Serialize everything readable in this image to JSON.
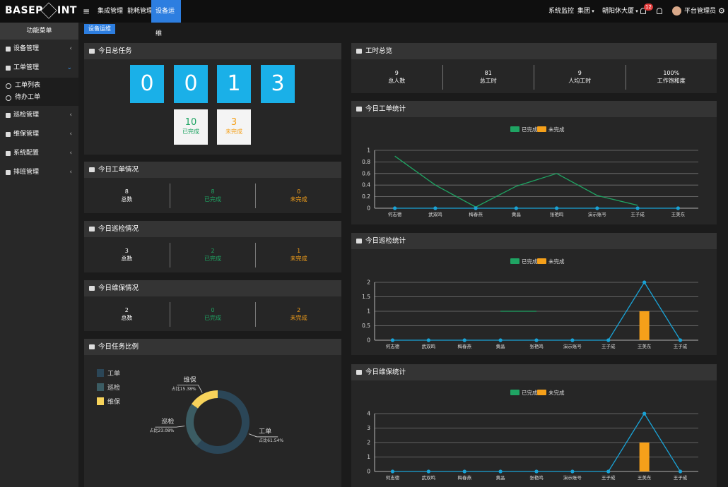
{
  "header": {
    "logo_left": "BASEP",
    "logo_right": "INT",
    "nav": [
      "集成管理",
      "能耗管理",
      "设备运维"
    ],
    "right_menu": [
      "系统监控",
      "集团",
      "朝阳休大厦"
    ],
    "notification_count": "12",
    "user": "平台管理员"
  },
  "sidebar": {
    "title": "功能菜单",
    "items": [
      {
        "label": "设备管理"
      },
      {
        "label": "工单管理",
        "children": [
          "工单列表",
          "待办工单"
        ]
      },
      {
        "label": "巡检管理"
      },
      {
        "label": "维保管理"
      },
      {
        "label": "系统配置"
      },
      {
        "label": "排班管理"
      }
    ]
  },
  "breadcrumb": "设备运维",
  "today_tasks": {
    "title": "今日总任务",
    "digits": [
      "0",
      "0",
      "1",
      "3"
    ],
    "done": {
      "value": "10",
      "label": "已完成"
    },
    "undone": {
      "value": "3",
      "label": "未完成"
    }
  },
  "work_orders": {
    "title": "今日工单情况",
    "stats": [
      {
        "value": "8",
        "label": "总数"
      },
      {
        "value": "8",
        "label": "已完成"
      },
      {
        "value": "0",
        "label": "未完成"
      }
    ]
  },
  "inspections": {
    "title": "今日巡检情况",
    "stats": [
      {
        "value": "3",
        "label": "总数"
      },
      {
        "value": "2",
        "label": "已完成"
      },
      {
        "value": "1",
        "label": "未完成"
      }
    ]
  },
  "maintenance": {
    "title": "今日维保情况",
    "stats": [
      {
        "value": "2",
        "label": "总数"
      },
      {
        "value": "0",
        "label": "已完成"
      },
      {
        "value": "2",
        "label": "未完成"
      }
    ]
  },
  "work_hours": {
    "title": "工时总览",
    "stats": [
      {
        "value": "9",
        "label": "总人数"
      },
      {
        "value": "81",
        "label": "总工时"
      },
      {
        "value": "9",
        "label": "人均工时"
      },
      {
        "value": "100%",
        "label": "工作饱和度"
      }
    ]
  },
  "chart_data": [
    {
      "type": "pie",
      "title": "今日任务比例",
      "categories": [
        "工单",
        "巡检",
        "维保"
      ],
      "values": [
        61.54,
        23.08,
        15.38
      ],
      "value_labels": [
        "占比61.54%",
        "占比23.08%",
        "占比15.38%"
      ],
      "colors": [
        "#2b4657",
        "#3b5c63",
        "#f7d35b"
      ]
    },
    {
      "type": "line",
      "title": "今日工单统计",
      "categories": [
        "何志德",
        "武双鸣",
        "梅春燕",
        "黄晶",
        "张艳鸣",
        "演示账号",
        "王子成",
        "王美东"
      ],
      "ylim": [
        0,
        1
      ],
      "yticks": [
        0,
        0.2,
        0.4,
        0.6,
        0.8,
        1
      ],
      "grid": true,
      "series": [
        {
          "name": "已完成",
          "color": "#1fa463",
          "type": "line",
          "values": [
            0.9,
            0.4,
            0.02,
            0.38,
            0.6,
            0.22,
            0.05,
            null
          ]
        },
        {
          "name": "未完成",
          "color": "#f5a01a",
          "type": "bar",
          "values": [
            0,
            0,
            0,
            0,
            0,
            0,
            0,
            0
          ]
        },
        {
          "color": "#1aa3d6",
          "type": "line",
          "markers": true,
          "values": [
            0,
            0,
            0,
            0,
            0,
            0,
            0,
            0
          ]
        }
      ]
    },
    {
      "type": "line",
      "title": "今日巡检统计",
      "categories": [
        "何志德",
        "武双鸣",
        "梅春燕",
        "黄晶",
        "张艳鸣",
        "演示账号",
        "王子成",
        "王美东",
        "王子成"
      ],
      "ylim": [
        0,
        2
      ],
      "yticks": [
        0,
        0.5,
        1,
        1.5,
        2
      ],
      "grid": true,
      "series": [
        {
          "name": "已完成",
          "color": "#1fa463",
          "type": "line",
          "values": [
            null,
            null,
            null,
            1,
            1,
            null,
            null,
            null,
            null
          ]
        },
        {
          "name": "未完成",
          "color": "#f5a01a",
          "type": "bar",
          "values": [
            0,
            0,
            0,
            0,
            0,
            0,
            0,
            1,
            0
          ]
        },
        {
          "color": "#1aa3d6",
          "type": "line",
          "markers": true,
          "values": [
            0,
            0,
            0,
            0,
            0,
            0,
            0,
            2,
            0
          ]
        }
      ]
    },
    {
      "type": "line",
      "title": "今日维保统计",
      "categories": [
        "何志德",
        "武双鸣",
        "梅春燕",
        "黄晶",
        "张艳鸣",
        "演示账号",
        "王子成",
        "王美东",
        "王子成"
      ],
      "ylim": [
        0,
        4
      ],
      "yticks": [
        0,
        1,
        2,
        3,
        4
      ],
      "grid": true,
      "series": [
        {
          "name": "已完成",
          "color": "#1fa463",
          "type": "line",
          "values": [
            null,
            null,
            null,
            null,
            null,
            null,
            null,
            null,
            null
          ]
        },
        {
          "name": "未完成",
          "color": "#f5a01a",
          "type": "bar",
          "values": [
            0,
            0,
            0,
            0,
            0,
            0,
            0,
            2,
            0
          ]
        },
        {
          "color": "#1aa3d6",
          "type": "line",
          "markers": true,
          "values": [
            0,
            0,
            0,
            0,
            0,
            0,
            0,
            4,
            0
          ]
        }
      ]
    }
  ]
}
